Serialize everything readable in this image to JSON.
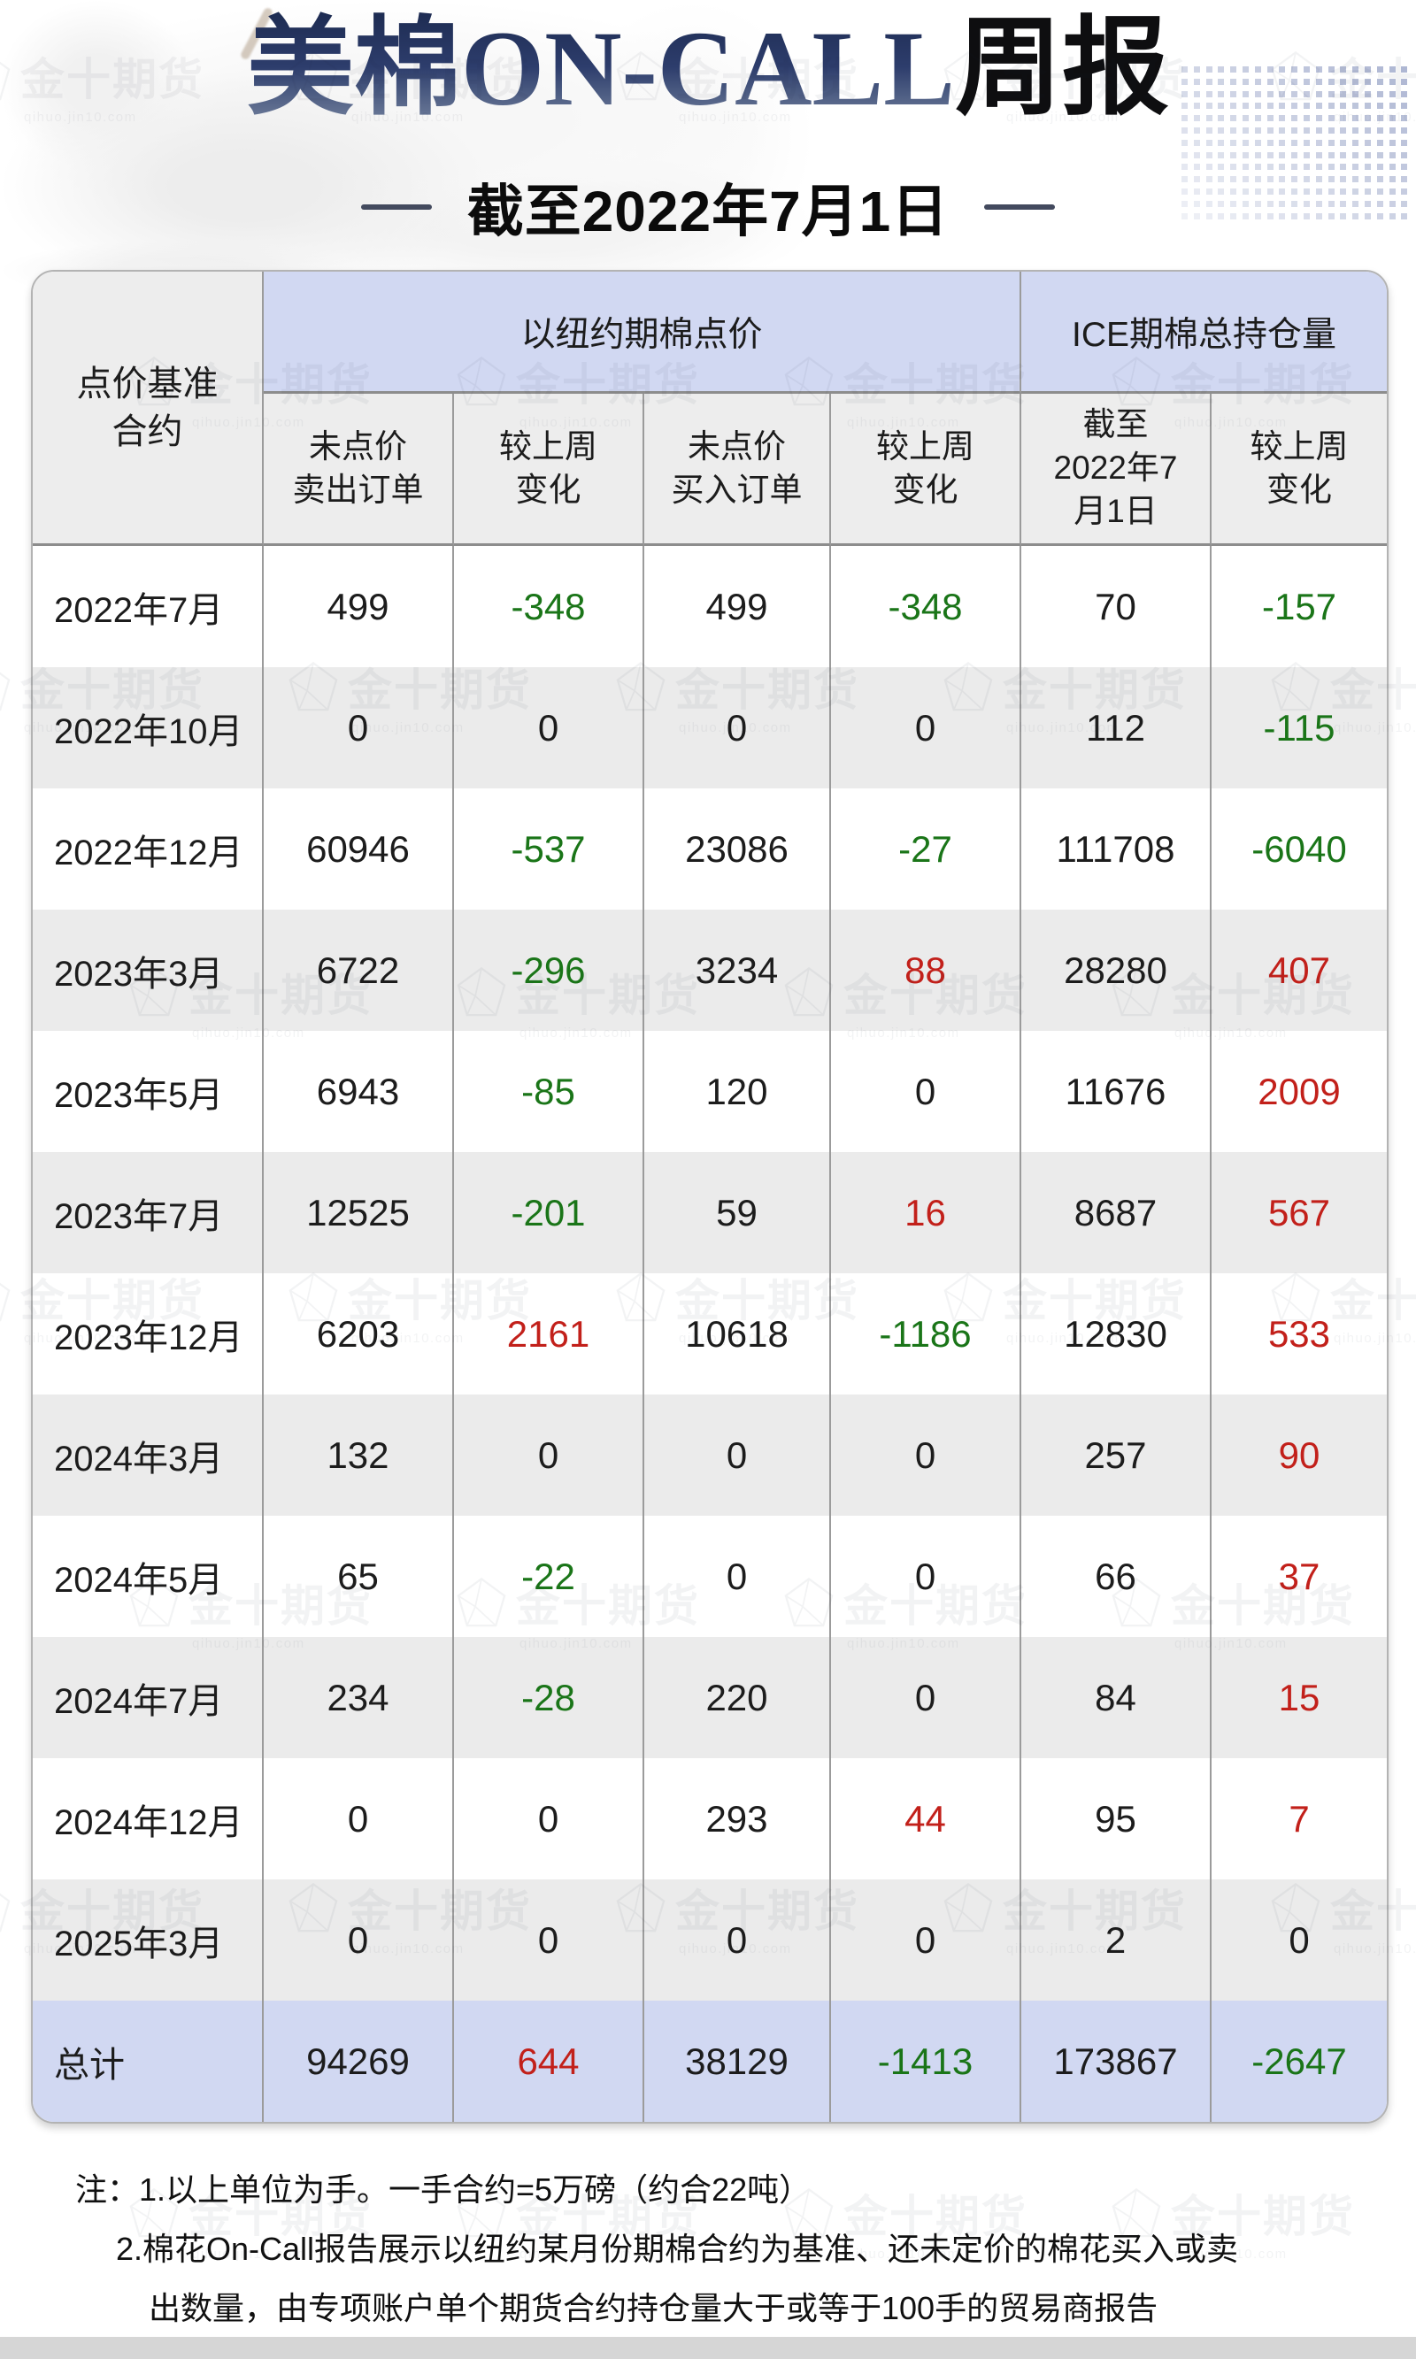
{
  "header": {
    "title_main": "美棉ON-CALL",
    "title_suffix": "周报",
    "subtitle": "截至2022年7月1日"
  },
  "watermark": {
    "text": "金十期货",
    "subtext": "qihuo.jin10.com"
  },
  "colors": {
    "positive_red": "#c2201a",
    "negative_green": "#1a7518",
    "neutral_black": "#1c1c1c",
    "group_header_fill": "#d1d8f2",
    "subheader_fill": "#ededed",
    "row_alt_fill": "#ebebeb",
    "total_row_fill": "#d1d8f2"
  },
  "chart_data": {
    "type": "table",
    "title": "美棉ON-CALL周报",
    "as_of": "截至2022年7月1日",
    "row_header": "点价基准\n合约",
    "column_groups": [
      {
        "label": "以纽约期棉点价",
        "span": 4
      },
      {
        "label": "ICE期棉总持仓量",
        "span": 2
      }
    ],
    "columns": [
      "未点价\n卖出订单",
      "较上周\n变化",
      "未点价\n买入订单",
      "较上周\n变化",
      "截至\n2022年7\n月1日",
      "较上周\n变化"
    ],
    "rows": [
      {
        "month": "2022年7月",
        "values": [
          499,
          -348,
          499,
          -348,
          70,
          -157
        ]
      },
      {
        "month": "2022年10月",
        "values": [
          0,
          0,
          0,
          0,
          112,
          -115
        ]
      },
      {
        "month": "2022年12月",
        "values": [
          60946,
          -537,
          23086,
          -27,
          111708,
          -6040
        ]
      },
      {
        "month": "2023年3月",
        "values": [
          6722,
          -296,
          3234,
          88,
          28280,
          407
        ]
      },
      {
        "month": "2023年5月",
        "values": [
          6943,
          -85,
          120,
          0,
          11676,
          2009
        ]
      },
      {
        "month": "2023年7月",
        "values": [
          12525,
          -201,
          59,
          16,
          8687,
          567
        ]
      },
      {
        "month": "2023年12月",
        "values": [
          6203,
          2161,
          10618,
          -1186,
          12830,
          533
        ]
      },
      {
        "month": "2024年3月",
        "values": [
          132,
          0,
          0,
          0,
          257,
          90
        ]
      },
      {
        "month": "2024年5月",
        "values": [
          65,
          -22,
          0,
          0,
          66,
          37
        ]
      },
      {
        "month": "2024年7月",
        "values": [
          234,
          -28,
          220,
          0,
          84,
          15
        ]
      },
      {
        "month": "2024年12月",
        "values": [
          0,
          0,
          293,
          44,
          95,
          7
        ]
      },
      {
        "month": "2025年3月",
        "values": [
          0,
          0,
          0,
          0,
          2,
          0
        ]
      }
    ],
    "total": {
      "label": "总计",
      "values": [
        94269,
        644,
        38129,
        -1413,
        173867,
        -2647
      ]
    }
  },
  "notes": {
    "line1": "注：1.以上单位为手。一手合约=5万磅（约合22吨）",
    "line2": "2.棉花On-Call报告展示以纽约某月份期棉合约为基准、还未定价的棉花买入或卖",
    "line3": "出数量，由专项账户单个期货合约持仓量大于或等于100手的贸易商报告"
  }
}
